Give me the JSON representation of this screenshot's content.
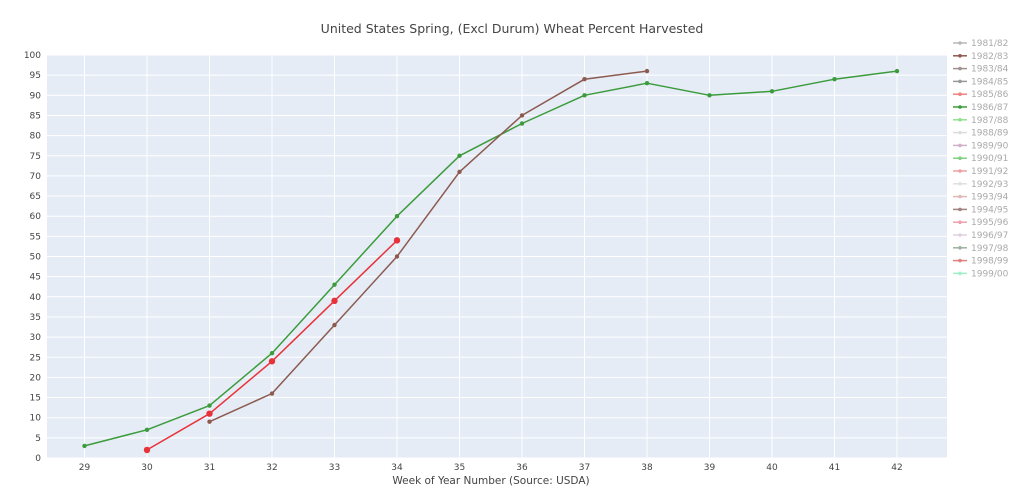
{
  "chart_data": {
    "type": "line",
    "title": "United States Spring, (Excl Durum) Wheat Percent Harvested",
    "xlabel": "Week of Year Number     (Source: USDA)",
    "ylabel": "",
    "xlim": [
      28.4,
      42.8
    ],
    "ylim": [
      0,
      100
    ],
    "x_ticks": [
      29,
      30,
      31,
      32,
      33,
      34,
      35,
      36,
      37,
      38,
      39,
      40,
      41,
      42
    ],
    "y_ticks": [
      0,
      5,
      10,
      15,
      20,
      25,
      30,
      35,
      40,
      45,
      50,
      55,
      60,
      65,
      70,
      75,
      80,
      85,
      90,
      95,
      100
    ],
    "grid": true,
    "legend_position": "right",
    "series": [
      {
        "color": "#3c9b3c",
        "marker_size": 2.2,
        "x": [
          29,
          30,
          31,
          32,
          33,
          34,
          35,
          36,
          37,
          38,
          39,
          40,
          41,
          42
        ],
        "y": [
          3,
          7,
          13,
          26,
          43,
          60,
          75,
          83,
          90,
          93,
          90,
          91,
          94,
          96
        ]
      },
      {
        "color": "#8c5a4f",
        "marker_size": 2.2,
        "x": [
          31,
          32,
          33,
          34,
          35,
          36,
          37,
          38
        ],
        "y": [
          9,
          16,
          33,
          50,
          71,
          85,
          94,
          96
        ]
      },
      {
        "color": "#e8323a",
        "marker_size": 3.2,
        "x": [
          30,
          31,
          32,
          33,
          34
        ],
        "y": [
          2,
          11,
          24,
          39,
          54
        ]
      }
    ],
    "legend": [
      {
        "name": "1981/82",
        "color": "#b8b8b8"
      },
      {
        "name": "1982/83",
        "color": "#8c5a4f"
      },
      {
        "name": "1983/84",
        "color": "#a09090"
      },
      {
        "name": "1984/85",
        "color": "#999999"
      },
      {
        "name": "1985/86",
        "color": "#f08080"
      },
      {
        "name": "1986/87",
        "color": "#3c9b3c"
      },
      {
        "name": "1987/88",
        "color": "#90e090"
      },
      {
        "name": "1988/89",
        "color": "#dddddd"
      },
      {
        "name": "1989/90",
        "color": "#d0b0c8"
      },
      {
        "name": "1990/91",
        "color": "#80d080"
      },
      {
        "name": "1991/92",
        "color": "#f0a0a0"
      },
      {
        "name": "1992/93",
        "color": "#e0e0e0"
      },
      {
        "name": "1993/94",
        "color": "#e0b8b8"
      },
      {
        "name": "1994/95",
        "color": "#a08080"
      },
      {
        "name": "1995/96",
        "color": "#f0a0b0"
      },
      {
        "name": "1996/97",
        "color": "#e0d0e0"
      },
      {
        "name": "1997/98",
        "color": "#a0b0a0"
      },
      {
        "name": "1998/99",
        "color": "#e08080"
      },
      {
        "name": "1999/00",
        "color": "#a0f0c8"
      }
    ]
  }
}
